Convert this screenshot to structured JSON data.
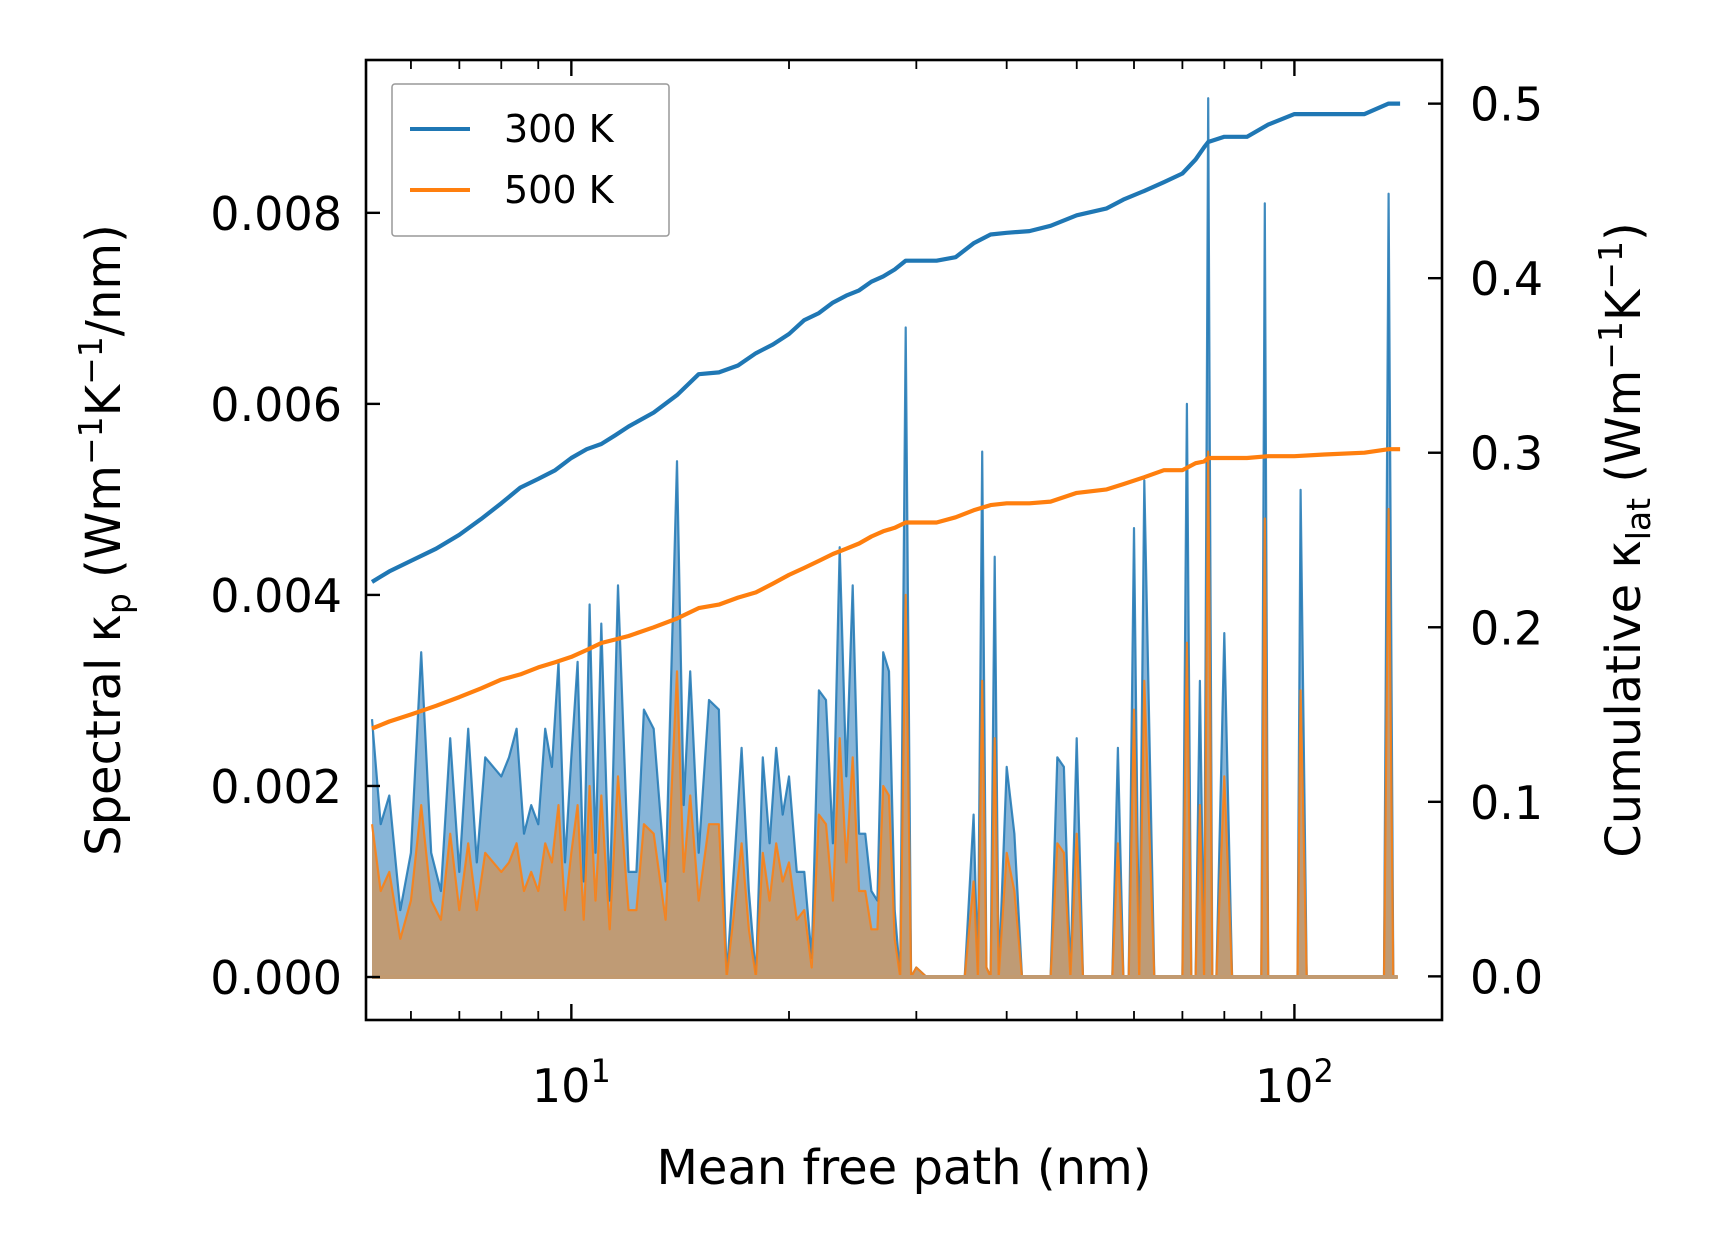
{
  "chart_data": {
    "type": "line",
    "xscale": "log",
    "xlabel": "Mean free path (nm)",
    "xlim": [
      5.2,
      160
    ],
    "ylabel_left": {
      "main": "Spectral κ",
      "sub": "p",
      "unit_a": " (Wm",
      "sup1": "−1",
      "unit_b": "K",
      "sup2": "−1",
      "unit_c": "/nm)"
    },
    "ylabel_right": {
      "main": "Cumulative κ",
      "sub": "lat",
      "unit_a": " (Wm",
      "sup1": "−1",
      "unit_b": "K",
      "sup2": "−1",
      "unit_c": ")"
    },
    "ylim_left": [
      -0.00045,
      0.0096
    ],
    "ylim_right": [
      -0.025,
      0.525
    ],
    "left_ticks": [
      {
        "value": 0.0,
        "label": "0.000"
      },
      {
        "value": 0.002,
        "label": "0.002"
      },
      {
        "value": 0.004,
        "label": "0.004"
      },
      {
        "value": 0.006,
        "label": "0.006"
      },
      {
        "value": 0.008,
        "label": "0.008"
      }
    ],
    "right_ticks": [
      {
        "value": 0.0,
        "label": "0.0"
      },
      {
        "value": 0.1,
        "label": "0.1"
      },
      {
        "value": 0.2,
        "label": "0.2"
      },
      {
        "value": 0.3,
        "label": "0.3"
      },
      {
        "value": 0.4,
        "label": "0.4"
      },
      {
        "value": 0.5,
        "label": "0.5"
      }
    ],
    "x_major_ticks": [
      {
        "value": 10,
        "base": "10",
        "exp": "1"
      },
      {
        "value": 100,
        "base": "10",
        "exp": "2"
      }
    ],
    "x_minor_ticks": [
      6,
      7,
      8,
      9,
      20,
      30,
      40,
      50,
      60,
      70,
      80,
      90
    ],
    "legend": [
      {
        "name": "300 K",
        "color": "#1f77b4"
      },
      {
        "name": "500 K",
        "color": "#ff7f0e"
      }
    ],
    "colors": {
      "c300": "#1f77b4",
      "c500": "#ff7f0e",
      "fill300": "#7aadd4",
      "fill500": "#c29a70"
    },
    "series": [
      {
        "name": "300 K",
        "axis": "right",
        "kind": "cumulative",
        "x": [
          5.3,
          5.6,
          6.0,
          6.5,
          7.0,
          7.5,
          8.0,
          8.5,
          9.0,
          9.5,
          10.0,
          10.5,
          11.0,
          11.5,
          12.0,
          13.0,
          14.0,
          15.0,
          16.0,
          17.0,
          18.0,
          19.0,
          20.0,
          21.0,
          22.0,
          23.0,
          24.0,
          25.0,
          26.0,
          27.0,
          28.0,
          29.0,
          30.0,
          32.0,
          34.0,
          36.0,
          38.0,
          40.0,
          43.0,
          46.0,
          50.0,
          55.0,
          58.0,
          62.0,
          66.0,
          70.0,
          73.0,
          75.0,
          76.0,
          80.0,
          86.0,
          92.0,
          100.0,
          110.0,
          125.0,
          135.0,
          140.0
        ],
        "values": [
          0.226,
          0.232,
          0.238,
          0.245,
          0.253,
          0.262,
          0.271,
          0.28,
          0.285,
          0.29,
          0.297,
          0.302,
          0.305,
          0.31,
          0.315,
          0.323,
          0.333,
          0.345,
          0.346,
          0.35,
          0.357,
          0.362,
          0.368,
          0.376,
          0.38,
          0.386,
          0.39,
          0.393,
          0.398,
          0.401,
          0.405,
          0.41,
          0.41,
          0.41,
          0.412,
          0.42,
          0.425,
          0.426,
          0.427,
          0.43,
          0.436,
          0.44,
          0.445,
          0.45,
          0.455,
          0.46,
          0.468,
          0.475,
          0.478,
          0.481,
          0.481,
          0.488,
          0.494,
          0.494,
          0.494,
          0.5,
          0.5
        ]
      },
      {
        "name": "500 K",
        "axis": "right",
        "kind": "cumulative",
        "x": [
          5.3,
          5.6,
          6.0,
          6.5,
          7.0,
          7.5,
          8.0,
          8.5,
          9.0,
          9.5,
          10.0,
          10.5,
          11.0,
          11.5,
          12.0,
          13.0,
          14.0,
          15.0,
          16.0,
          17.0,
          18.0,
          19.0,
          20.0,
          21.0,
          22.0,
          23.0,
          24.0,
          25.0,
          26.0,
          27.0,
          28.0,
          29.0,
          30.0,
          32.0,
          34.0,
          36.0,
          38.0,
          40.0,
          43.0,
          46.0,
          50.0,
          55.0,
          58.0,
          62.0,
          66.0,
          70.0,
          73.0,
          75.0,
          76.0,
          80.0,
          86.0,
          92.0,
          100.0,
          110.0,
          125.0,
          135.0,
          140.0
        ],
        "values": [
          0.142,
          0.146,
          0.15,
          0.155,
          0.16,
          0.165,
          0.17,
          0.173,
          0.177,
          0.18,
          0.183,
          0.187,
          0.191,
          0.193,
          0.195,
          0.2,
          0.205,
          0.211,
          0.213,
          0.217,
          0.22,
          0.225,
          0.23,
          0.234,
          0.238,
          0.242,
          0.245,
          0.248,
          0.252,
          0.255,
          0.257,
          0.26,
          0.26,
          0.26,
          0.263,
          0.267,
          0.27,
          0.271,
          0.271,
          0.272,
          0.277,
          0.279,
          0.282,
          0.286,
          0.29,
          0.29,
          0.294,
          0.295,
          0.297,
          0.297,
          0.297,
          0.298,
          0.298,
          0.299,
          0.3,
          0.302,
          0.302
        ]
      },
      {
        "name": "300 K",
        "axis": "left",
        "kind": "spectral",
        "x": [
          5.3,
          5.45,
          5.6,
          5.8,
          6.0,
          6.2,
          6.4,
          6.6,
          6.8,
          7.0,
          7.2,
          7.4,
          7.6,
          7.8,
          8.0,
          8.2,
          8.4,
          8.6,
          8.8,
          9.0,
          9.2,
          9.4,
          9.6,
          9.8,
          10.0,
          10.2,
          10.4,
          10.6,
          10.8,
          11.0,
          11.3,
          11.6,
          12.0,
          12.3,
          12.6,
          13.0,
          13.5,
          14.0,
          14.3,
          14.6,
          15.0,
          15.5,
          16.0,
          16.4,
          16.8,
          17.2,
          17.6,
          18.0,
          18.4,
          18.8,
          19.2,
          19.6,
          20.0,
          20.5,
          21.0,
          21.5,
          22.0,
          22.5,
          23.0,
          23.5,
          24.0,
          24.5,
          25.0,
          25.5,
          26.0,
          26.5,
          27.0,
          27.5,
          28.0,
          28.5,
          29.0,
          29.5,
          30.0,
          31.0,
          32.0,
          33.0,
          34.0,
          35.0,
          36.0,
          36.5,
          37.0,
          37.5,
          38.0,
          38.5,
          39.0,
          40.0,
          41.0,
          42.0,
          43.0,
          44.0,
          45.0,
          46.0,
          47.0,
          48.0,
          49.0,
          50.0,
          51.0,
          52.0,
          54.0,
          56.0,
          57.0,
          58.0,
          59.0,
          60.0,
          61.0,
          62.0,
          64.0,
          66.0,
          68.0,
          69.0,
          70.0,
          71.0,
          72.0,
          73.0,
          74.0,
          75.0,
          76.0,
          77.0,
          78.0,
          80.0,
          82.0,
          84.0,
          86.0,
          88.0,
          90.0,
          91.0,
          92.0,
          93.0,
          96.0,
          99.0,
          101.0,
          102.0,
          104.0,
          110.0,
          120.0,
          130.0,
          133.0,
          135.0,
          137.0,
          139.0
        ],
        "values": [
          0.0027,
          0.0016,
          0.0019,
          0.0007,
          0.0013,
          0.0034,
          0.0013,
          0.0009,
          0.0025,
          0.0011,
          0.0026,
          0.0012,
          0.0023,
          0.0022,
          0.0021,
          0.0023,
          0.0026,
          0.0015,
          0.0018,
          0.0016,
          0.0026,
          0.0022,
          0.0033,
          0.0012,
          0.0023,
          0.0033,
          0.001,
          0.0039,
          0.0013,
          0.0037,
          0.0008,
          0.0041,
          0.0011,
          0.0011,
          0.0028,
          0.0026,
          0.001,
          0.0054,
          0.0018,
          0.0032,
          0.0013,
          0.0029,
          0.0028,
          0.0,
          0.0012,
          0.0024,
          0.0009,
          0.0,
          0.0023,
          0.0014,
          0.0024,
          0.0017,
          0.0021,
          0.0011,
          0.0011,
          0.0002,
          0.003,
          0.0029,
          0.0014,
          0.0045,
          0.0021,
          0.0041,
          0.0015,
          0.0015,
          0.0009,
          0.0008,
          0.0034,
          0.0032,
          0.0007,
          0.0,
          0.0068,
          0.0,
          0.0001,
          0.0,
          0.0,
          0.0,
          0.0,
          0.0,
          0.0017,
          0.0,
          0.0055,
          0.0001,
          0.0,
          0.0044,
          0.0,
          0.0022,
          0.0015,
          0.0,
          0.0,
          0.0,
          0.0,
          0.0,
          0.0023,
          0.0022,
          0.0,
          0.0025,
          0.0,
          0.0,
          0.0,
          0.0,
          0.0024,
          0.0,
          0.0,
          0.0047,
          0.0,
          0.0052,
          0.0,
          0.0,
          0.0,
          0.0,
          0.0,
          0.006,
          0.0,
          0.0,
          0.0031,
          0.0,
          0.0092,
          0.0,
          0.0,
          0.0036,
          0.0,
          0.0,
          0.0,
          0.0,
          0.0,
          0.0081,
          0.0,
          0.0,
          0.0,
          0.0,
          0.0,
          0.0051,
          0.0,
          0.0,
          0.0,
          0.0,
          0.0,
          0.0082,
          0.0,
          0.0
        ],
        "alpha_note": "filled"
      },
      {
        "name": "500 K",
        "axis": "left",
        "kind": "spectral",
        "x": [
          5.3,
          5.45,
          5.6,
          5.8,
          6.0,
          6.2,
          6.4,
          6.6,
          6.8,
          7.0,
          7.2,
          7.4,
          7.6,
          7.8,
          8.0,
          8.2,
          8.4,
          8.6,
          8.8,
          9.0,
          9.2,
          9.4,
          9.6,
          9.8,
          10.0,
          10.2,
          10.4,
          10.6,
          10.8,
          11.0,
          11.3,
          11.6,
          12.0,
          12.3,
          12.6,
          13.0,
          13.5,
          14.0,
          14.3,
          14.6,
          15.0,
          15.5,
          16.0,
          16.4,
          16.8,
          17.2,
          17.6,
          18.0,
          18.4,
          18.8,
          19.2,
          19.6,
          20.0,
          20.5,
          21.0,
          21.5,
          22.0,
          22.5,
          23.0,
          23.5,
          24.0,
          24.5,
          25.0,
          25.5,
          26.0,
          26.5,
          27.0,
          27.5,
          28.0,
          28.5,
          29.0,
          29.5,
          30.0,
          31.0,
          32.0,
          33.0,
          34.0,
          35.0,
          36.0,
          36.5,
          37.0,
          37.5,
          38.0,
          38.5,
          39.0,
          40.0,
          41.0,
          42.0,
          43.0,
          44.0,
          45.0,
          46.0,
          47.0,
          48.0,
          49.0,
          50.0,
          51.0,
          52.0,
          54.0,
          56.0,
          57.0,
          58.0,
          59.0,
          60.0,
          61.0,
          62.0,
          64.0,
          66.0,
          68.0,
          69.0,
          70.0,
          71.0,
          72.0,
          73.0,
          74.0,
          75.0,
          76.0,
          77.0,
          78.0,
          80.0,
          82.0,
          84.0,
          86.0,
          88.0,
          90.0,
          91.0,
          92.0,
          93.0,
          96.0,
          99.0,
          101.0,
          102.0,
          104.0,
          110.0,
          120.0,
          130.0,
          133.0,
          135.0,
          137.0,
          139.0
        ],
        "values": [
          0.0016,
          0.0009,
          0.0011,
          0.0004,
          0.0008,
          0.0018,
          0.0008,
          0.0006,
          0.0015,
          0.0007,
          0.0014,
          0.0007,
          0.0013,
          0.0012,
          0.0011,
          0.0012,
          0.0014,
          0.0009,
          0.0011,
          0.0009,
          0.0014,
          0.0012,
          0.0018,
          0.0007,
          0.0013,
          0.0018,
          0.0006,
          0.002,
          0.0008,
          0.0019,
          0.0005,
          0.0021,
          0.0007,
          0.0007,
          0.0016,
          0.0015,
          0.0006,
          0.0032,
          0.0011,
          0.0019,
          0.0008,
          0.0016,
          0.0016,
          0.0,
          0.0007,
          0.0014,
          0.0005,
          0.0,
          0.0013,
          0.0008,
          0.0014,
          0.001,
          0.0012,
          0.0006,
          0.0007,
          0.0001,
          0.0017,
          0.0016,
          0.0008,
          0.0025,
          0.0012,
          0.0023,
          0.0009,
          0.0009,
          0.0005,
          0.0005,
          0.002,
          0.0019,
          0.0004,
          0.0,
          0.004,
          0.0,
          0.0001,
          0.0,
          0.0,
          0.0,
          0.0,
          0.0,
          0.001,
          0.0,
          0.0031,
          0.0001,
          0.0,
          0.0025,
          0.0,
          0.0013,
          0.0009,
          0.0,
          0.0,
          0.0,
          0.0,
          0.0,
          0.0014,
          0.0013,
          0.0,
          0.0015,
          0.0,
          0.0,
          0.0,
          0.0,
          0.0014,
          0.0,
          0.0,
          0.0028,
          0.0,
          0.0031,
          0.0,
          0.0,
          0.0,
          0.0,
          0.0,
          0.0035,
          0.0,
          0.0,
          0.0018,
          0.0,
          0.0055,
          0.0,
          0.0,
          0.0021,
          0.0,
          0.0,
          0.0,
          0.0,
          0.0,
          0.0048,
          0.0,
          0.0,
          0.0,
          0.0,
          0.0,
          0.003,
          0.0,
          0.0,
          0.0,
          0.0,
          0.0,
          0.0049,
          0.0,
          0.0
        ]
      }
    ]
  }
}
